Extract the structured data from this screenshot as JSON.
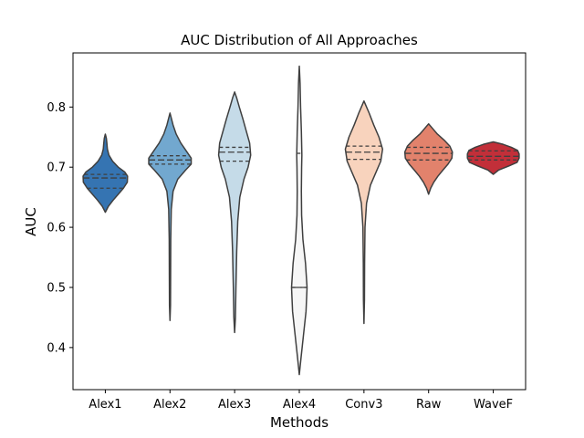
{
  "chart_data": {
    "type": "violin",
    "title": "AUC Distribution of All Approaches",
    "xlabel": "Methods",
    "ylabel": "AUC",
    "ylim": [
      0.33,
      0.89
    ],
    "yticks": [
      "0.4",
      "0.5",
      "0.6",
      "0.7",
      "0.8"
    ],
    "grid": false,
    "legend": "none",
    "inner": "quartile",
    "categories": [
      "Alex1",
      "Alex2",
      "Alex3",
      "Alex4",
      "Conv3",
      "Raw",
      "WaveF"
    ],
    "series": [
      {
        "category": "Alex1",
        "color": "#3574b2",
        "min": 0.625,
        "max": 0.755,
        "quartiles": [
          0.665,
          0.682,
          0.688
        ],
        "profile": [
          [
            0.625,
            0.0
          ],
          [
            0.635,
            0.12
          ],
          [
            0.645,
            0.3
          ],
          [
            0.655,
            0.5
          ],
          [
            0.665,
            0.7
          ],
          [
            0.675,
            0.85
          ],
          [
            0.685,
            0.86
          ],
          [
            0.692,
            0.75
          ],
          [
            0.7,
            0.5
          ],
          [
            0.71,
            0.28
          ],
          [
            0.72,
            0.14
          ],
          [
            0.73,
            0.08
          ],
          [
            0.74,
            0.06
          ],
          [
            0.748,
            0.04
          ],
          [
            0.755,
            0.0
          ]
        ]
      },
      {
        "category": "Alex2",
        "color": "#72a8cf",
        "min": 0.445,
        "max": 0.79,
        "quartiles": [
          0.705,
          0.712,
          0.719
        ],
        "profile": [
          [
            0.445,
            0.0
          ],
          [
            0.47,
            0.02
          ],
          [
            0.52,
            0.025
          ],
          [
            0.58,
            0.03
          ],
          [
            0.63,
            0.05
          ],
          [
            0.66,
            0.12
          ],
          [
            0.68,
            0.3
          ],
          [
            0.695,
            0.6
          ],
          [
            0.705,
            0.82
          ],
          [
            0.715,
            0.82
          ],
          [
            0.725,
            0.66
          ],
          [
            0.74,
            0.42
          ],
          [
            0.755,
            0.24
          ],
          [
            0.77,
            0.12
          ],
          [
            0.78,
            0.06
          ],
          [
            0.79,
            0.0
          ]
        ]
      },
      {
        "category": "Alex3",
        "color": "#c5dbe8",
        "min": 0.425,
        "max": 0.825,
        "quartiles": [
          0.71,
          0.725,
          0.733
        ],
        "profile": [
          [
            0.425,
            0.0
          ],
          [
            0.45,
            0.03
          ],
          [
            0.5,
            0.05
          ],
          [
            0.56,
            0.08
          ],
          [
            0.61,
            0.12
          ],
          [
            0.65,
            0.2
          ],
          [
            0.68,
            0.36
          ],
          [
            0.7,
            0.52
          ],
          [
            0.72,
            0.62
          ],
          [
            0.74,
            0.58
          ],
          [
            0.76,
            0.45
          ],
          [
            0.78,
            0.32
          ],
          [
            0.8,
            0.18
          ],
          [
            0.815,
            0.08
          ],
          [
            0.825,
            0.0
          ]
        ]
      },
      {
        "category": "Alex4",
        "color": "#f6f6f6",
        "min": 0.355,
        "max": 0.868,
        "quartiles": [
          0.5,
          0.5,
          0.723
        ],
        "profile": [
          [
            0.355,
            0.0
          ],
          [
            0.38,
            0.06
          ],
          [
            0.42,
            0.16
          ],
          [
            0.46,
            0.26
          ],
          [
            0.5,
            0.3
          ],
          [
            0.54,
            0.24
          ],
          [
            0.58,
            0.14
          ],
          [
            0.62,
            0.09
          ],
          [
            0.66,
            0.08
          ],
          [
            0.7,
            0.09
          ],
          [
            0.72,
            0.1
          ],
          [
            0.76,
            0.08
          ],
          [
            0.8,
            0.05
          ],
          [
            0.84,
            0.03
          ],
          [
            0.868,
            0.0
          ]
        ]
      },
      {
        "category": "Conv3",
        "color": "#f8d3bd",
        "min": 0.44,
        "max": 0.81,
        "quartiles": [
          0.713,
          0.725,
          0.735
        ],
        "profile": [
          [
            0.44,
            0.0
          ],
          [
            0.48,
            0.02
          ],
          [
            0.54,
            0.025
          ],
          [
            0.6,
            0.04
          ],
          [
            0.64,
            0.1
          ],
          [
            0.67,
            0.25
          ],
          [
            0.69,
            0.45
          ],
          [
            0.71,
            0.65
          ],
          [
            0.73,
            0.72
          ],
          [
            0.75,
            0.58
          ],
          [
            0.77,
            0.38
          ],
          [
            0.79,
            0.2
          ],
          [
            0.8,
            0.1
          ],
          [
            0.81,
            0.0
          ]
        ]
      },
      {
        "category": "Raw",
        "color": "#e2826c",
        "min": 0.655,
        "max": 0.772,
        "quartiles": [
          0.712,
          0.723,
          0.733
        ],
        "profile": [
          [
            0.655,
            0.0
          ],
          [
            0.665,
            0.08
          ],
          [
            0.675,
            0.2
          ],
          [
            0.685,
            0.36
          ],
          [
            0.695,
            0.55
          ],
          [
            0.705,
            0.75
          ],
          [
            0.715,
            0.9
          ],
          [
            0.725,
            0.92
          ],
          [
            0.735,
            0.82
          ],
          [
            0.745,
            0.6
          ],
          [
            0.755,
            0.34
          ],
          [
            0.763,
            0.18
          ],
          [
            0.772,
            0.0
          ]
        ]
      },
      {
        "category": "WaveF",
        "color": "#c22f39",
        "min": 0.688,
        "max": 0.742,
        "quartiles": [
          0.712,
          0.718,
          0.727
        ],
        "profile": [
          [
            0.688,
            0.0
          ],
          [
            0.695,
            0.2
          ],
          [
            0.702,
            0.6
          ],
          [
            0.708,
            0.92
          ],
          [
            0.715,
            1.0
          ],
          [
            0.722,
            1.0
          ],
          [
            0.728,
            0.94
          ],
          [
            0.733,
            0.7
          ],
          [
            0.738,
            0.38
          ],
          [
            0.742,
            0.0
          ]
        ]
      }
    ]
  }
}
